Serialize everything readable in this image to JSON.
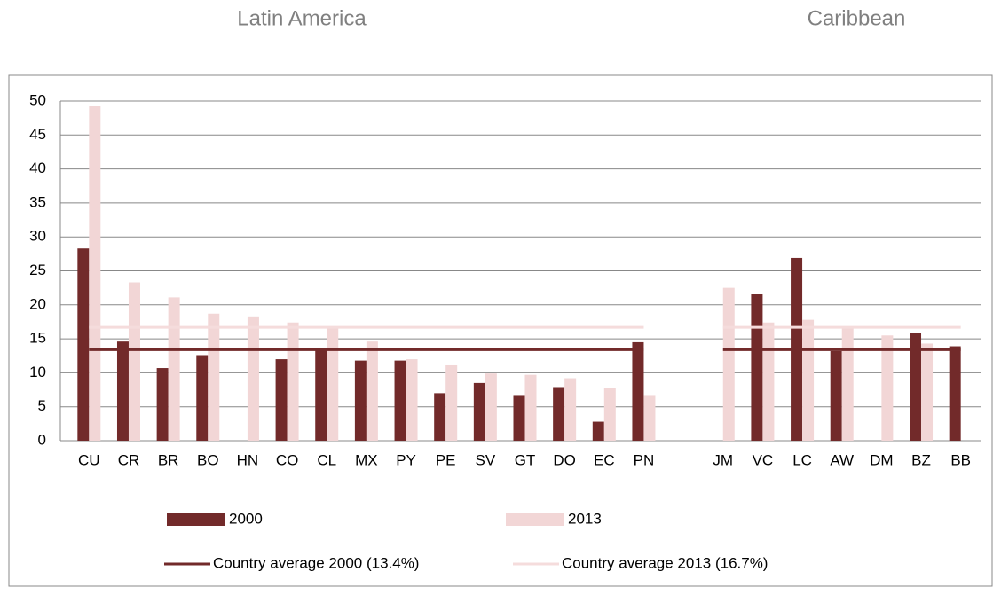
{
  "chart_data": {
    "type": "bar",
    "annotations": [
      "Latin America",
      "Caribbean"
    ],
    "categories": [
      "CU",
      "CR",
      "BR",
      "BO",
      "HN",
      "CO",
      "CL",
      "MX",
      "PY",
      "PE",
      "SV",
      "GT",
      "DO",
      "EC",
      "PN",
      null,
      "JM",
      "VC",
      "LC",
      "AW",
      "DM",
      "BZ",
      "BB"
    ],
    "series": [
      {
        "name": "2000",
        "color": "#722a2a",
        "values": [
          28.3,
          14.6,
          10.7,
          12.6,
          null,
          12,
          13.7,
          11.8,
          11.8,
          7,
          8.5,
          6.6,
          7.9,
          2.8,
          14.5,
          null,
          null,
          21.6,
          26.9,
          13.2,
          null,
          15.8,
          13.9
        ]
      },
      {
        "name": "2013",
        "color": "#f2d6d6",
        "values": [
          49.3,
          23.3,
          21.1,
          18.7,
          18.3,
          17.4,
          16.8,
          14.6,
          12,
          11.1,
          9.9,
          9.7,
          9.2,
          7.8,
          6.6,
          null,
          22.5,
          17.4,
          17.8,
          16.8,
          15.5,
          14.3,
          null
        ]
      },
      {
        "name": "Country average 2000 (13.4%)",
        "type": "line",
        "color": "#722a2a",
        "values": [
          13.4,
          13.4,
          13.4,
          13.4,
          13.4,
          13.4,
          13.4,
          13.4,
          13.4,
          13.4,
          13.4,
          13.4,
          13.4,
          13.4,
          13.4,
          null,
          13.4,
          13.4,
          13.4,
          13.4,
          13.4,
          13.4,
          13.4
        ]
      },
      {
        "name": "Country average 2013 (16.7%)",
        "type": "line",
        "color": "#f5dcdc",
        "values": [
          16.7,
          16.7,
          16.7,
          16.7,
          16.7,
          16.7,
          16.7,
          16.7,
          16.7,
          16.7,
          16.7,
          16.7,
          16.7,
          16.7,
          16.7,
          null,
          16.7,
          16.7,
          16.7,
          16.7,
          16.7,
          16.7,
          16.7
        ]
      }
    ],
    "ylim": [
      0,
      50
    ],
    "yticks": [
      0,
      5,
      10,
      15,
      20,
      25,
      30,
      35,
      40,
      45,
      50
    ],
    "grid": true,
    "legend": "bottom"
  }
}
